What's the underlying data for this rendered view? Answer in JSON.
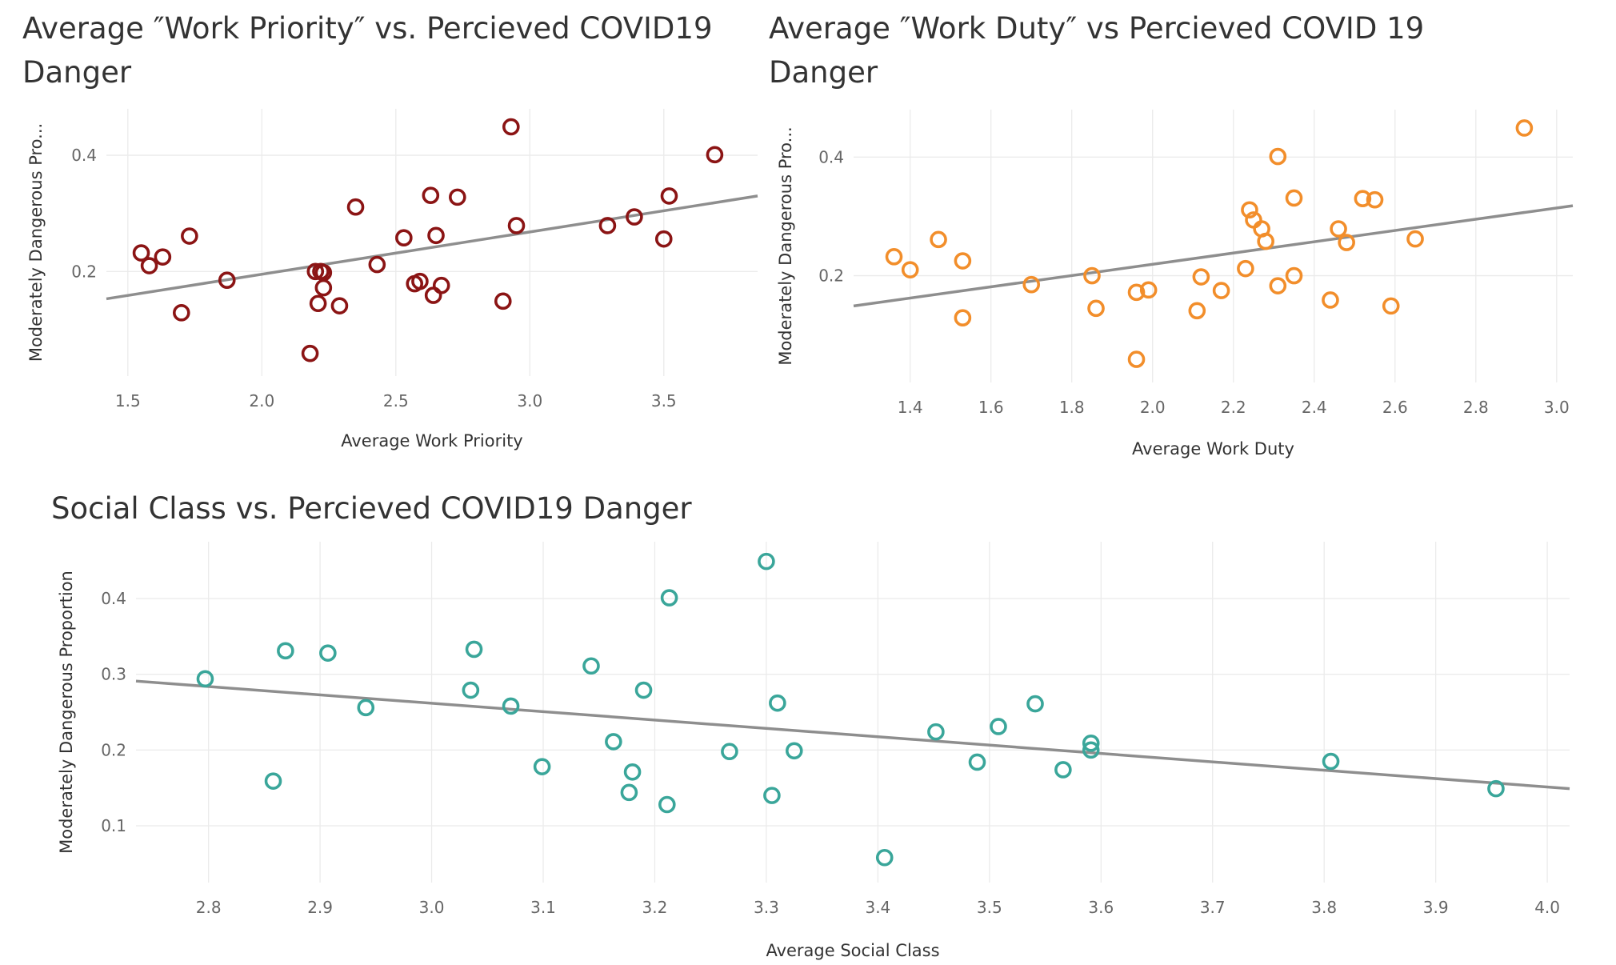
{
  "colors": {
    "priority": "#8b1414",
    "duty": "#f28e2b",
    "social": "#3aa69a",
    "trend": "#8e8e8e"
  },
  "chart_data": [
    {
      "type": "scatter",
      "title": "Average ″Work Priority″ vs. Percieved COVID19 Danger",
      "xlabel": "Average Work Priority",
      "ylabel": "Moderately Dangerous Pro...",
      "xlim": [
        1.42,
        3.85
      ],
      "ylim": [
        0.02,
        0.48
      ],
      "xticks": [
        "1.5",
        "2.0",
        "2.5",
        "3.0",
        "3.5"
      ],
      "yticks": [
        "0.2",
        "0.4"
      ],
      "points": [
        [
          1.55,
          0.232
        ],
        [
          1.58,
          0.21
        ],
        [
          1.63,
          0.225
        ],
        [
          1.7,
          0.129
        ],
        [
          1.73,
          0.261
        ],
        [
          1.87,
          0.185
        ],
        [
          2.18,
          0.059
        ],
        [
          2.2,
          0.2
        ],
        [
          2.21,
          0.145
        ],
        [
          2.22,
          0.2
        ],
        [
          2.23,
          0.172
        ],
        [
          2.23,
          0.198
        ],
        [
          2.29,
          0.141
        ],
        [
          2.35,
          0.311
        ],
        [
          2.43,
          0.212
        ],
        [
          2.53,
          0.258
        ],
        [
          2.57,
          0.179
        ],
        [
          2.59,
          0.183
        ],
        [
          2.63,
          0.331
        ],
        [
          2.64,
          0.159
        ],
        [
          2.65,
          0.262
        ],
        [
          2.67,
          0.176
        ],
        [
          2.73,
          0.328
        ],
        [
          2.9,
          0.149
        ],
        [
          2.93,
          0.449
        ],
        [
          2.95,
          0.279
        ],
        [
          3.29,
          0.279
        ],
        [
          3.39,
          0.294
        ],
        [
          3.5,
          0.256
        ],
        [
          3.52,
          0.33
        ],
        [
          3.69,
          0.401
        ]
      ],
      "trend": [
        [
          1.42,
          0.153
        ],
        [
          3.85,
          0.33
        ]
      ]
    },
    {
      "type": "scatter",
      "title": "Average ″Work Duty″ vs  Percieved COVID 19 Danger",
      "xlabel": "Average Work Duty",
      "ylabel": "Moderately Dangerous Pro...",
      "xlim": [
        1.26,
        3.04
      ],
      "ylim": [
        0.02,
        0.48
      ],
      "xticks": [
        "1.4",
        "1.6",
        "1.8",
        "2.0",
        "2.2",
        "2.4",
        "2.6",
        "2.8",
        "3.0"
      ],
      "yticks": [
        "0.2",
        "0.4"
      ],
      "points": [
        [
          1.36,
          0.232
        ],
        [
          1.4,
          0.21
        ],
        [
          1.47,
          0.261
        ],
        [
          1.53,
          0.225
        ],
        [
          1.53,
          0.129
        ],
        [
          1.7,
          0.185
        ],
        [
          1.85,
          0.2
        ],
        [
          1.86,
          0.145
        ],
        [
          1.96,
          0.172
        ],
        [
          1.96,
          0.059
        ],
        [
          1.99,
          0.176
        ],
        [
          2.11,
          0.141
        ],
        [
          2.12,
          0.198
        ],
        [
          2.17,
          0.175
        ],
        [
          2.23,
          0.212
        ],
        [
          2.24,
          0.311
        ],
        [
          2.25,
          0.294
        ],
        [
          2.27,
          0.279
        ],
        [
          2.28,
          0.258
        ],
        [
          2.31,
          0.401
        ],
        [
          2.31,
          0.183
        ],
        [
          2.35,
          0.331
        ],
        [
          2.35,
          0.2
        ],
        [
          2.44,
          0.159
        ],
        [
          2.46,
          0.279
        ],
        [
          2.48,
          0.256
        ],
        [
          2.52,
          0.33
        ],
        [
          2.55,
          0.328
        ],
        [
          2.59,
          0.149
        ],
        [
          2.65,
          0.262
        ],
        [
          2.92,
          0.449
        ]
      ],
      "trend": [
        [
          1.26,
          0.149
        ],
        [
          3.04,
          0.318
        ]
      ]
    },
    {
      "type": "scatter",
      "title": "Social Class vs. Percieved COVID19 Danger",
      "xlabel": "Average Social Class",
      "ylabel": "Moderately Dangerous Proportion",
      "xlim": [
        2.735,
        4.02
      ],
      "ylim": [
        0.025,
        0.475
      ],
      "xticks": [
        "2.8",
        "2.9",
        "3.0",
        "3.1",
        "3.2",
        "3.3",
        "3.4",
        "3.5",
        "3.6",
        "3.7",
        "3.8",
        "3.9",
        "4.0"
      ],
      "yticks": [
        "0.1",
        "0.2",
        "0.3",
        "0.4"
      ],
      "points": [
        [
          2.797,
          0.294
        ],
        [
          2.858,
          0.159
        ],
        [
          2.869,
          0.331
        ],
        [
          2.907,
          0.328
        ],
        [
          2.941,
          0.256
        ],
        [
          3.035,
          0.279
        ],
        [
          3.038,
          0.333
        ],
        [
          3.071,
          0.258
        ],
        [
          3.099,
          0.178
        ],
        [
          3.143,
          0.311
        ],
        [
          3.163,
          0.211
        ],
        [
          3.177,
          0.144
        ],
        [
          3.18,
          0.171
        ],
        [
          3.19,
          0.279
        ],
        [
          3.211,
          0.128
        ],
        [
          3.213,
          0.401
        ],
        [
          3.267,
          0.198
        ],
        [
          3.3,
          0.449
        ],
        [
          3.305,
          0.14
        ],
        [
          3.31,
          0.262
        ],
        [
          3.325,
          0.199
        ],
        [
          3.406,
          0.058
        ],
        [
          3.452,
          0.224
        ],
        [
          3.489,
          0.184
        ],
        [
          3.508,
          0.231
        ],
        [
          3.541,
          0.261
        ],
        [
          3.566,
          0.174
        ],
        [
          3.591,
          0.209
        ],
        [
          3.591,
          0.2
        ],
        [
          3.806,
          0.185
        ],
        [
          3.954,
          0.149
        ]
      ],
      "trend": [
        [
          2.735,
          0.291
        ],
        [
          4.02,
          0.149
        ]
      ]
    }
  ]
}
